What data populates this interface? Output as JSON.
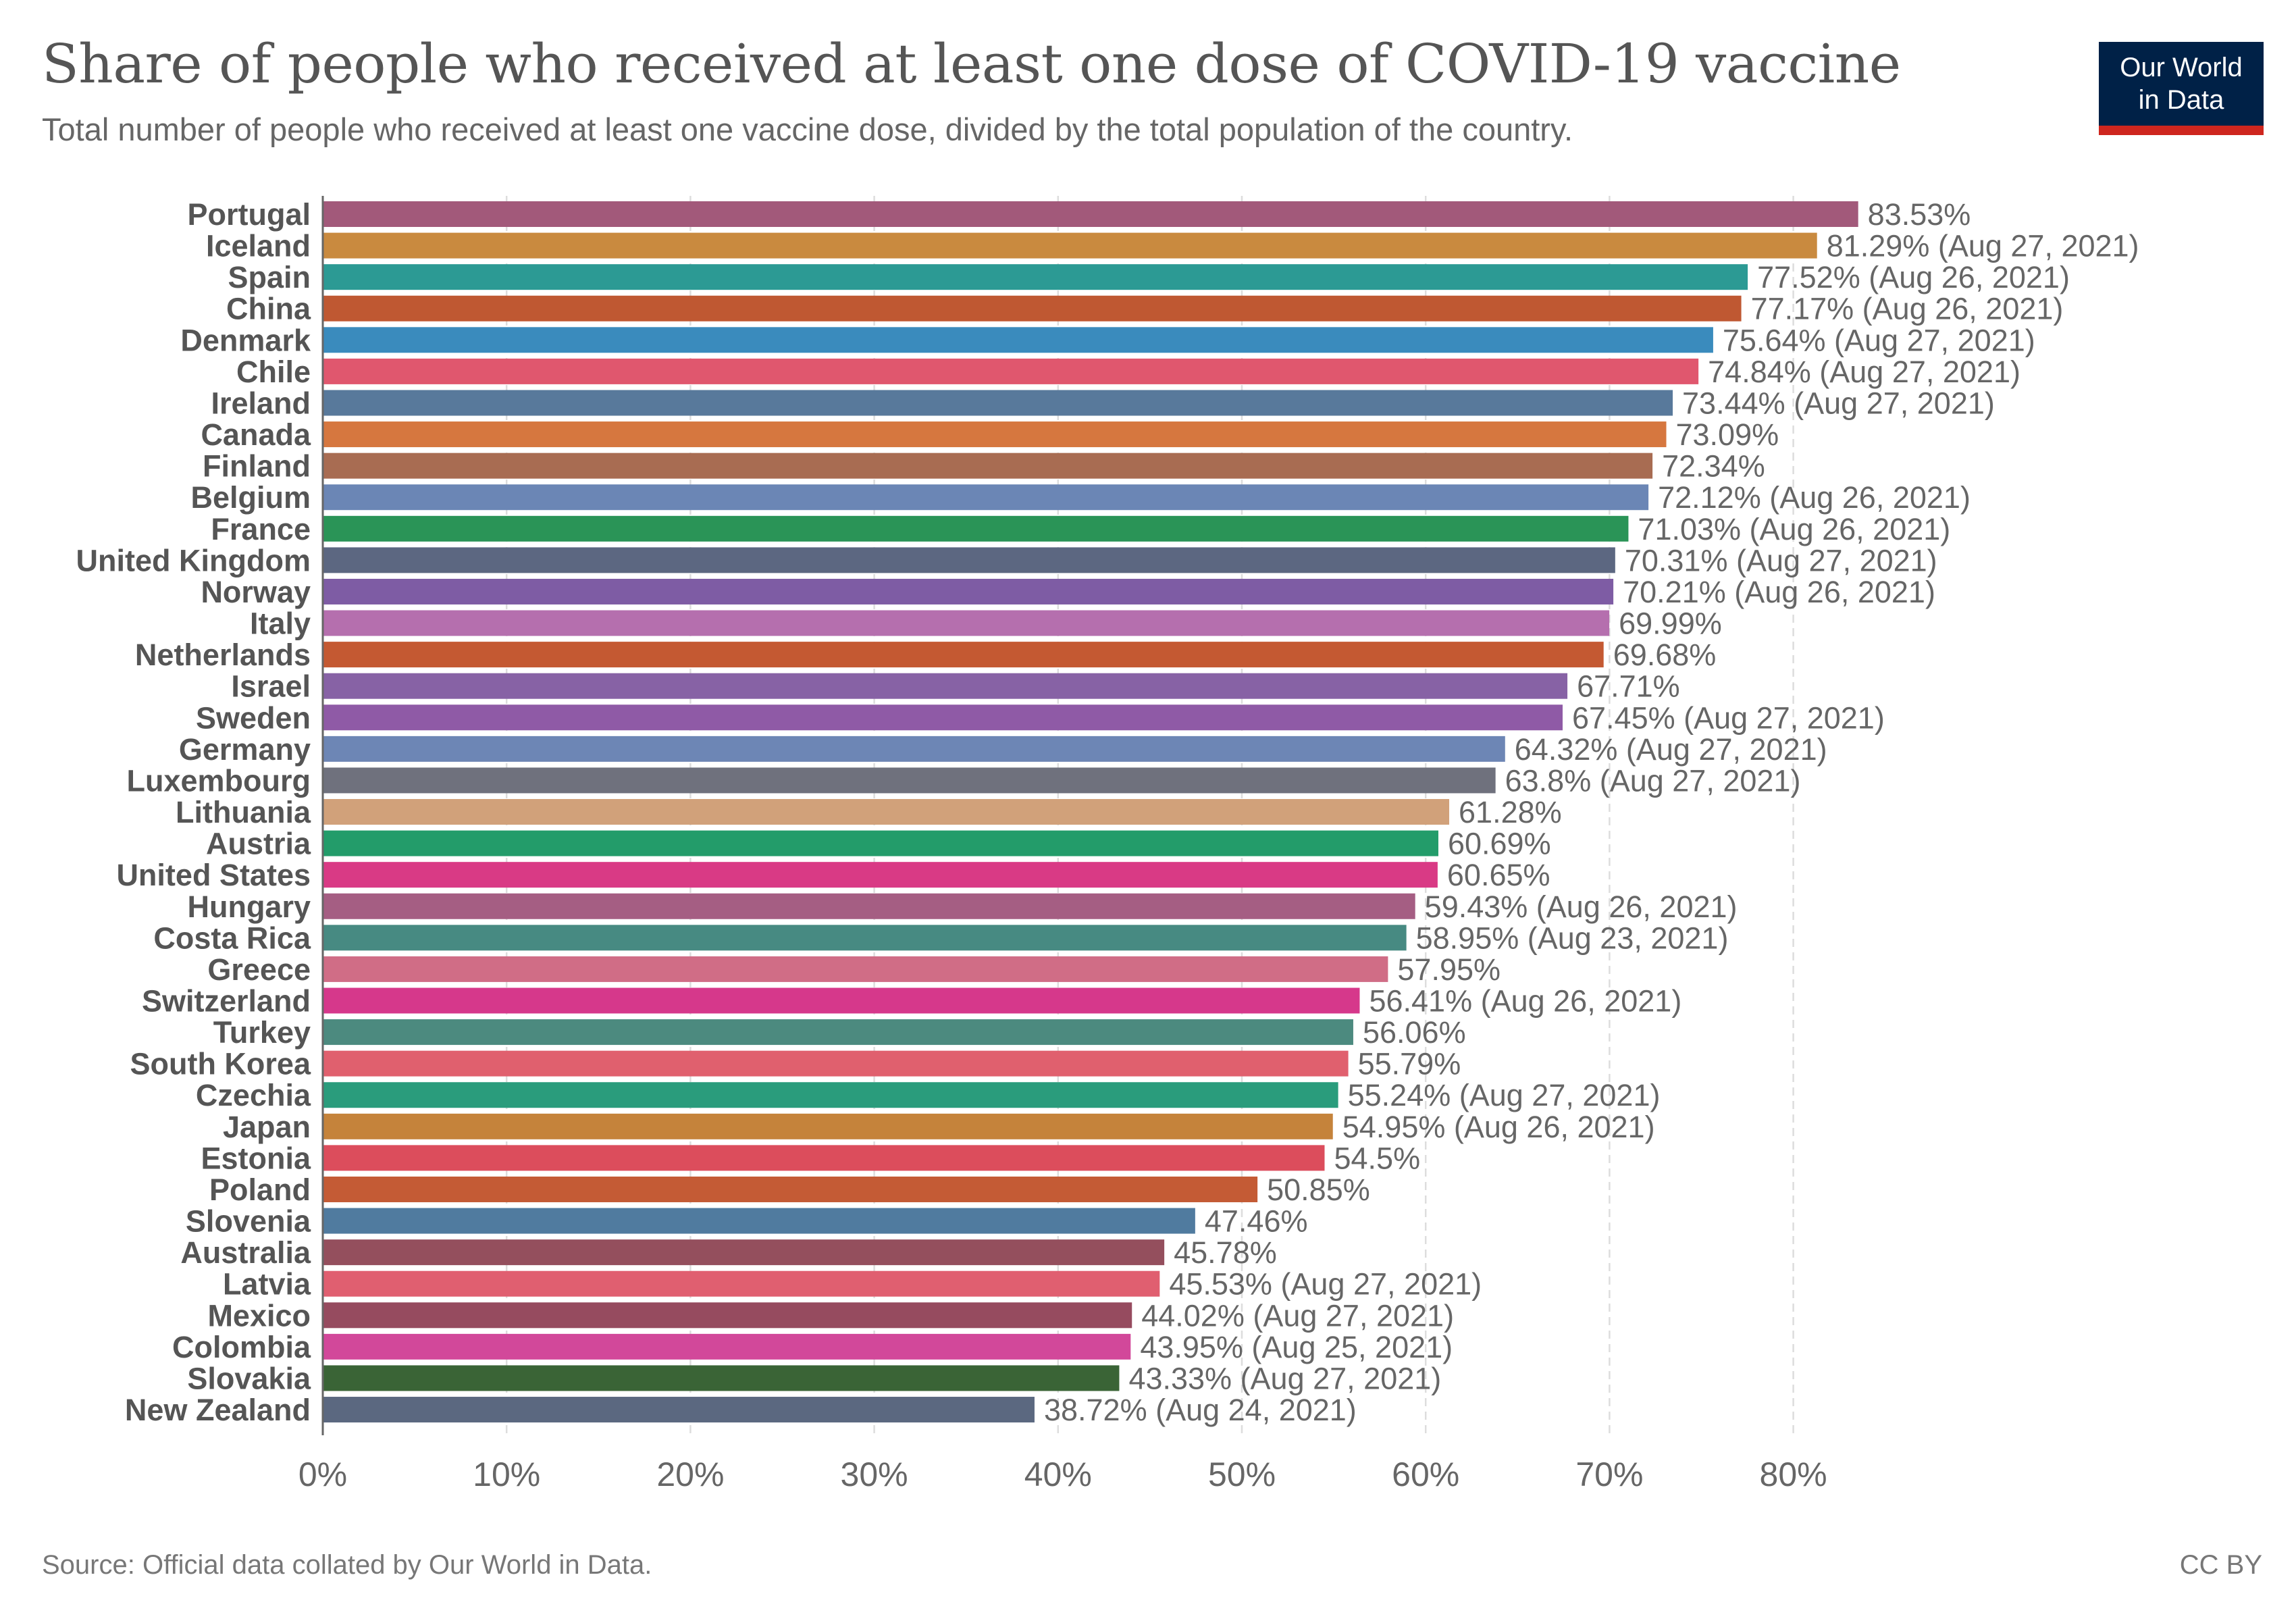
{
  "header": {
    "title": "Share of people who received at least one dose of COVID-19 vaccine",
    "subtitle": "Total number of people who received at least one vaccine dose, divided by the total population of the country."
  },
  "logo": {
    "line1": "Our World",
    "line2": "in Data",
    "bg_color": "#002147",
    "stripe_color": "#ce261e"
  },
  "footer": {
    "source": "Source: Official data collated by Our World in Data.",
    "license": "CC BY"
  },
  "chart_data": {
    "type": "bar",
    "orientation": "horizontal",
    "title": "Share of people who received at least one dose of COVID-19 vaccine",
    "subtitle": "Total number of people who received at least one vaccine dose, divided by the total population of the country.",
    "xlim": [
      0,
      85
    ],
    "x_ticks": [
      0,
      10,
      20,
      30,
      40,
      50,
      60,
      70,
      80
    ],
    "x_tick_labels": [
      "0%",
      "10%",
      "20%",
      "30%",
      "40%",
      "50%",
      "60%",
      "70%",
      "80%"
    ],
    "grid": "vertical dashed",
    "categories": [
      "Portugal",
      "Iceland",
      "Spain",
      "China",
      "Denmark",
      "Chile",
      "Ireland",
      "Canada",
      "Finland",
      "Belgium",
      "France",
      "United Kingdom",
      "Norway",
      "Italy",
      "Netherlands",
      "Israel",
      "Sweden",
      "Germany",
      "Luxembourg",
      "Lithuania",
      "Austria",
      "United States",
      "Hungary",
      "Costa Rica",
      "Greece",
      "Switzerland",
      "Turkey",
      "South Korea",
      "Czechia",
      "Japan",
      "Estonia",
      "Poland",
      "Slovenia",
      "Australia",
      "Latvia",
      "Mexico",
      "Colombia",
      "Slovakia",
      "New Zealand"
    ],
    "values": [
      83.53,
      81.29,
      77.52,
      77.17,
      75.64,
      74.84,
      73.44,
      73.09,
      72.34,
      72.12,
      71.03,
      70.31,
      70.21,
      69.99,
      69.68,
      67.71,
      67.45,
      64.32,
      63.8,
      61.28,
      60.69,
      60.65,
      59.43,
      58.95,
      57.95,
      56.41,
      56.06,
      55.79,
      55.24,
      54.95,
      54.5,
      50.85,
      47.46,
      45.78,
      45.53,
      44.02,
      43.95,
      43.33,
      38.72
    ],
    "labels": [
      "83.53%",
      "81.29% (Aug 27, 2021)",
      "77.52% (Aug 26, 2021)",
      "77.17% (Aug 26, 2021)",
      "75.64% (Aug 27, 2021)",
      "74.84% (Aug 27, 2021)",
      "73.44% (Aug 27, 2021)",
      "73.09%",
      "72.34%",
      "72.12% (Aug 26, 2021)",
      "71.03% (Aug 26, 2021)",
      "70.31% (Aug 27, 2021)",
      "70.21% (Aug 26, 2021)",
      "69.99%",
      "69.68%",
      "67.71%",
      "67.45% (Aug 27, 2021)",
      "64.32% (Aug 27, 2021)",
      "63.8% (Aug 27, 2021)",
      "61.28%",
      "60.69%",
      "60.65%",
      "59.43% (Aug 26, 2021)",
      "58.95% (Aug 23, 2021)",
      "57.95%",
      "56.41% (Aug 26, 2021)",
      "56.06%",
      "55.79%",
      "55.24% (Aug 27, 2021)",
      "54.95% (Aug 26, 2021)",
      "54.5%",
      "50.85%",
      "47.46%",
      "45.78%",
      "45.53% (Aug 27, 2021)",
      "44.02% (Aug 27, 2021)",
      "43.95% (Aug 25, 2021)",
      "43.33% (Aug 27, 2021)",
      "38.72% (Aug 24, 2021)"
    ],
    "colors": [
      "#a2597a",
      "#c98a3f",
      "#2c9a94",
      "#bf5832",
      "#3a8bbd",
      "#e0576e",
      "#58799b",
      "#d6773f",
      "#a86c52",
      "#6b86b5",
      "#2a9457",
      "#5c6781",
      "#7e5ca4",
      "#b56fae",
      "#c45932",
      "#8762a5",
      "#8f5aa6",
      "#6d86b5",
      "#6f717d",
      "#d1a17a",
      "#239c6a",
      "#d93a85",
      "#a55e83",
      "#478a82",
      "#d06d86",
      "#d6388b",
      "#4c8a7f",
      "#e0606e",
      "#2a9c7c",
      "#c5833b",
      "#dc4d5c",
      "#c45b35",
      "#507b9f",
      "#944f5d",
      "#e05f70",
      "#964b5f",
      "#d2489a",
      "#3a6436",
      "#5b6880"
    ]
  }
}
